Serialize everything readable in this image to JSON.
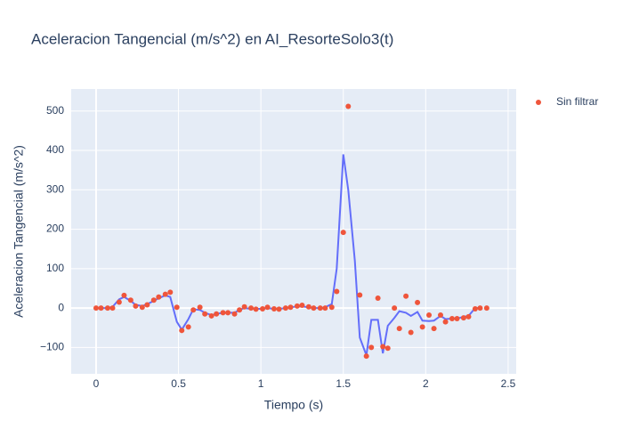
{
  "chart_data": {
    "type": "scatter",
    "title": "Aceleracion Tangencial (m/s^2) en AI_ResorteSolo3(t)",
    "x_label": "Tiempo (s)",
    "y_label": "Aceleracion Tangencial (m/s^2)",
    "x": [
      0,
      0.03,
      0.07,
      0.1,
      0.14,
      0.17,
      0.21,
      0.24,
      0.28,
      0.31,
      0.35,
      0.38,
      0.42,
      0.45,
      0.49,
      0.52,
      0.56,
      0.59,
      0.63,
      0.66,
      0.7,
      0.73,
      0.77,
      0.8,
      0.84,
      0.87,
      0.9,
      0.94,
      0.97,
      1.01,
      1.04,
      1.08,
      1.11,
      1.15,
      1.18,
      1.22,
      1.25,
      1.29,
      1.32,
      1.36,
      1.39,
      1.43,
      1.46,
      1.5,
      1.53,
      1.57,
      1.6,
      1.64,
      1.67,
      1.71,
      1.74,
      1.77,
      1.81,
      1.84,
      1.88,
      1.91,
      1.95,
      1.98,
      2.02,
      2.05,
      2.09,
      2.12,
      2.16,
      2.19,
      2.23,
      2.26,
      2.3,
      2.33,
      2.37
    ],
    "series": [
      {
        "mode": "lines",
        "color": "#636efa",
        "values": [
          0,
          0,
          0,
          3,
          22,
          28,
          18,
          8,
          5,
          10,
          18,
          25,
          32,
          28,
          -35,
          -55,
          -28,
          -3,
          -5,
          -12,
          -18,
          -15,
          -12,
          -12,
          -12,
          -5,
          0,
          -2,
          -2,
          -2,
          0,
          -2,
          -2,
          0,
          2,
          4,
          4,
          2,
          0,
          0,
          2,
          10,
          100,
          390,
          300,
          120,
          -75,
          -120,
          -30,
          -30,
          -115,
          -45,
          -25,
          -8,
          -12,
          -20,
          -10,
          -32,
          -33,
          -32,
          -20,
          -28,
          -27,
          -27,
          -22,
          -20,
          0,
          0,
          null
        ]
      },
      {
        "name": "Sin filtrar",
        "mode": "markers",
        "color": "#ef553b",
        "values": [
          0,
          0,
          0,
          0,
          15,
          32,
          20,
          5,
          2,
          8,
          20,
          28,
          35,
          40,
          2,
          -57,
          -48,
          -5,
          2,
          -15,
          -20,
          -15,
          -12,
          -12,
          -15,
          -5,
          3,
          0,
          -3,
          -2,
          2,
          -2,
          -3,
          0,
          2,
          5,
          7,
          3,
          0,
          0,
          0,
          2,
          42,
          192,
          512,
          null,
          33,
          -122,
          -100,
          25,
          -98,
          -102,
          0,
          -52,
          30,
          -62,
          14,
          -48,
          -18,
          -52,
          -18,
          -35,
          -27,
          -27,
          -25,
          -22,
          -2,
          0,
          0
        ]
      }
    ],
    "xlim": [
      -0.151,
      2.549
    ],
    "xticks": [
      0,
      0.5,
      1,
      1.5,
      2,
      2.5
    ],
    "ylim": [
      -167,
      556
    ],
    "yticks": [
      {
        "value": -100,
        "label": "−100"
      },
      0,
      100,
      200,
      300,
      400,
      500
    ],
    "grid": true,
    "legend": "right"
  }
}
